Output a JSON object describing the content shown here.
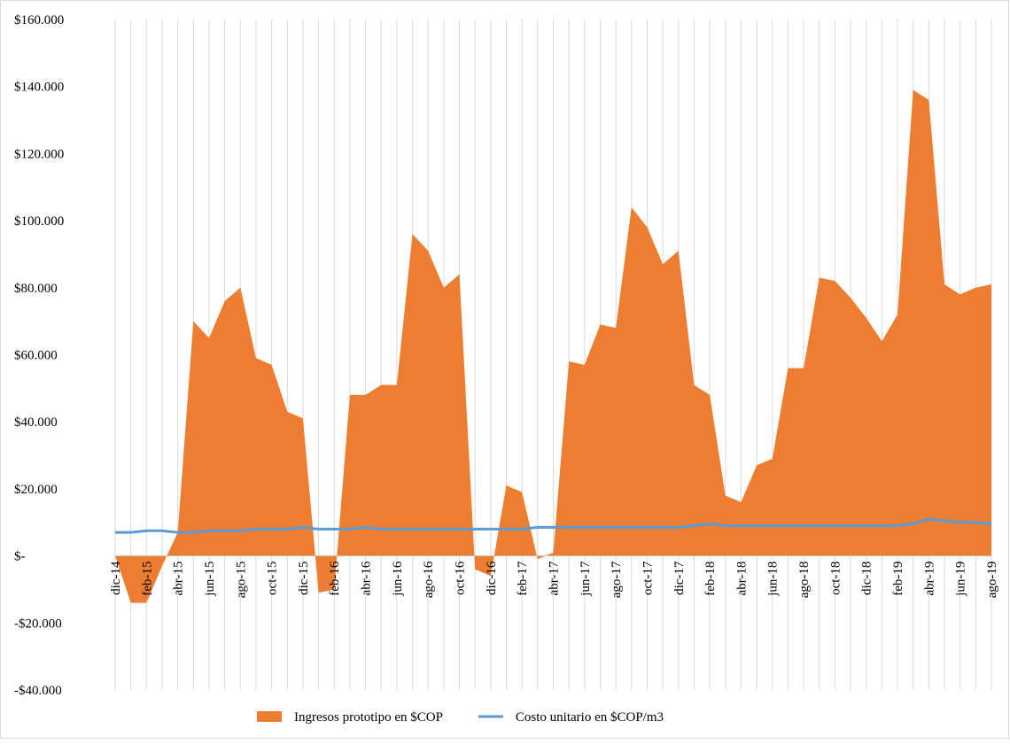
{
  "chart_data": {
    "type": "area-line",
    "categories": [
      "dic-14",
      null,
      "feb-15",
      null,
      "abr-15",
      null,
      "jun-15",
      null,
      "ago-15",
      null,
      "oct-15",
      null,
      "dic-15",
      null,
      "feb-16",
      null,
      "abr-16",
      null,
      "jun-16",
      null,
      "ago-16",
      null,
      "oct-16",
      null,
      "dic-16",
      null,
      "feb-17",
      null,
      "abr-17",
      null,
      "jun-17",
      null,
      "ago-17",
      null,
      "oct-17",
      null,
      "dic-17",
      null,
      "feb-18",
      null,
      "abr-18",
      null,
      "jun-18",
      null,
      "ago-18",
      null,
      "oct-18",
      null,
      "dic-18",
      null,
      "feb-19",
      null,
      "abr-19",
      null,
      "jun-19",
      null,
      "ago-19"
    ],
    "series": [
      {
        "name": "Ingresos prototipo en $COP",
        "color": "#ed7d31",
        "kind": "area",
        "values": [
          0,
          -14000,
          -14000,
          -3000,
          7000,
          70000,
          65000,
          76000,
          80000,
          59000,
          57000,
          43000,
          41000,
          -11000,
          -10000,
          48000,
          48000,
          51000,
          51000,
          96000,
          91000,
          80000,
          84000,
          -4000,
          -6000,
          21000,
          19000,
          -1000,
          1000,
          58000,
          57000,
          69000,
          68000,
          104000,
          98000,
          87000,
          91000,
          51000,
          48000,
          18000,
          16000,
          27000,
          29000,
          56000,
          56000,
          83000,
          82000,
          77000,
          71000,
          64000,
          72000,
          139000,
          136000,
          81000,
          78000,
          80000,
          81000
        ]
      },
      {
        "name": "Costo unitario en $COP/m3",
        "color": "#5b9bd5",
        "kind": "line",
        "values": [
          7000,
          7000,
          7500,
          7500,
          7000,
          7000,
          7500,
          7500,
          7500,
          8000,
          8000,
          8000,
          8500,
          8000,
          8000,
          8000,
          8500,
          8000,
          8000,
          8000,
          8000,
          8000,
          8000,
          8000,
          8000,
          8000,
          8000,
          8500,
          8500,
          8500,
          8500,
          8500,
          8500,
          8500,
          8500,
          8500,
          8500,
          9000,
          9500,
          9000,
          9000,
          9000,
          9000,
          9000,
          9000,
          9000,
          9000,
          9000,
          9000,
          9000,
          9000,
          9500,
          11000,
          10500,
          10000,
          10000,
          9500
        ]
      }
    ],
    "ylim": [
      -40000,
      160000
    ],
    "yticks": [
      {
        "value": -40000,
        "label": "-$40.000"
      },
      {
        "value": -20000,
        "label": "-$20.000"
      },
      {
        "value": 0,
        "label": "$-"
      },
      {
        "value": 20000,
        "label": "$20.000"
      },
      {
        "value": 40000,
        "label": "$40.000"
      },
      {
        "value": 60000,
        "label": "$60.000"
      },
      {
        "value": 80000,
        "label": "$80.000"
      },
      {
        "value": 100000,
        "label": "$100.000"
      },
      {
        "value": 120000,
        "label": "$120.000"
      },
      {
        "value": 140000,
        "label": "$140.000"
      },
      {
        "value": 160000,
        "label": "$160.000"
      }
    ],
    "grid": "vertical",
    "legend": "bottom"
  }
}
